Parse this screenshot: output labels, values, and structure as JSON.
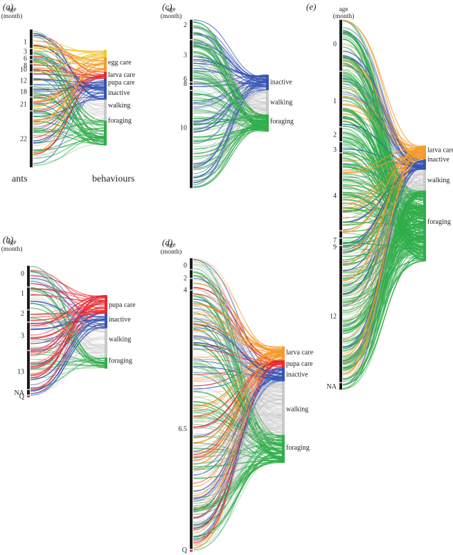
{
  "colors": {
    "egg care": "#f2c62e",
    "larva care": "#f59a2a",
    "pupa care": "#e8292f",
    "inactive": "#3553b2",
    "walking": "#c8c8c8",
    "foraging": "#2fad4a",
    "axis": "#1a1a1a"
  },
  "axis_title_line1": "age",
  "axis_title_line2": "(month)",
  "left_caption": "ants",
  "right_caption": "behaviours",
  "chart_data": [
    {
      "type": "sankey",
      "panel": "(a)",
      "ages": [
        "1",
        "3",
        "6",
        "8",
        "10",
        "12",
        "18",
        "21",
        "22"
      ],
      "age_shares": [
        0.14,
        0.05,
        0.03,
        0.03,
        0.06,
        0.1,
        0.08,
        0.1,
        0.41
      ],
      "behaviours": [
        "egg care",
        "larva care",
        "pupa care",
        "inactive",
        "walking",
        "foraging"
      ],
      "behaviour_shares": [
        0.08,
        0.15,
        0.07,
        0.22,
        0.22,
        0.26
      ],
      "behaviour_label_y": [
        0.13,
        0.26,
        0.34,
        0.45,
        0.58,
        0.74
      ]
    },
    {
      "type": "sankey",
      "panel": "(b)",
      "ages": [
        "0",
        "1",
        "2",
        "3",
        "13",
        "NA",
        "Q"
      ],
      "age_shares": [
        0.16,
        0.17,
        0.09,
        0.21,
        0.29,
        0.04,
        0.02
      ],
      "behaviours": [
        "pupa care",
        "inactive",
        "walking",
        "foraging"
      ],
      "behaviour_shares": [
        0.25,
        0.2,
        0.4,
        0.15
      ],
      "behaviour_label_y": [
        0.13,
        0.33,
        0.6,
        0.89
      ]
    },
    {
      "type": "sankey",
      "panel": "(c)",
      "ages": [
        "2",
        "3",
        "6",
        "8",
        "10"
      ],
      "age_shares": [
        0.12,
        0.25,
        0.02,
        0.03,
        0.58
      ],
      "behaviours": [
        "inactive",
        "walking",
        "foraging"
      ],
      "behaviour_shares": [
        0.27,
        0.43,
        0.3
      ],
      "behaviour_label_y": [
        0.13,
        0.48,
        0.82
      ]
    },
    {
      "type": "sankey",
      "panel": "(d)",
      "ages": [
        "0",
        "2",
        "4",
        "6.5",
        "Q"
      ],
      "age_shares": [
        0.04,
        0.03,
        0.04,
        0.88,
        0.01
      ],
      "behaviours": [
        "larva care",
        "pupa care",
        "inactive",
        "walking",
        "foraging"
      ],
      "behaviour_shares": [
        0.12,
        0.06,
        0.12,
        0.46,
        0.24
      ],
      "behaviour_label_y": [
        0.05,
        0.15,
        0.24,
        0.54,
        0.87
      ]
    },
    {
      "type": "sankey",
      "panel": "(e)",
      "ages": [
        "0",
        "1",
        "2",
        "3",
        "4",
        "7",
        "9",
        "12",
        "NA"
      ],
      "age_shares": [
        0.14,
        0.15,
        0.04,
        0.03,
        0.21,
        0.02,
        0.02,
        0.37,
        0.02
      ],
      "behaviours": [
        "larva care",
        "inactive",
        "walking",
        "foraging"
      ],
      "behaviour_shares": [
        0.12,
        0.09,
        0.18,
        0.61
      ],
      "behaviour_label_y": [
        0.04,
        0.12,
        0.3,
        0.66
      ]
    }
  ]
}
